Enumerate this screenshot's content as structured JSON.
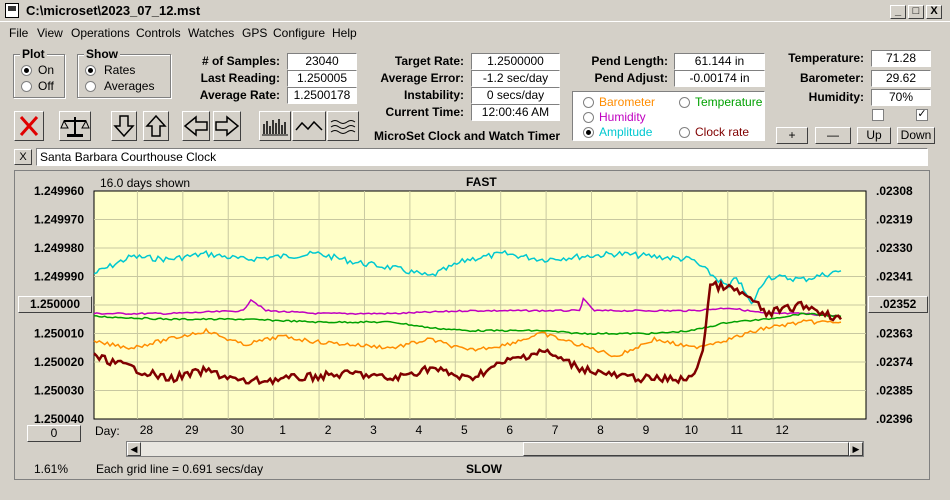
{
  "window": {
    "title": "C:\\microset\\2023_07_12.mst"
  },
  "menu": [
    "File",
    "View",
    "Operations",
    "Controls",
    "Watches",
    "GPS",
    "Configure",
    "Help"
  ],
  "window_buttons": {
    "minimize": "_",
    "maximize": "□",
    "close": "X"
  },
  "plot_group": {
    "caption": "Plot",
    "on": "On",
    "off": "Off",
    "selected": "On"
  },
  "show_group": {
    "caption": "Show",
    "rates": "Rates",
    "averages": "Averages",
    "selected": "Rates"
  },
  "stats": {
    "samples_label": "# of Samples:",
    "samples": "23040",
    "last_reading_label": "Last Reading:",
    "last_reading": "1.250005",
    "avg_rate_label": "Average Rate:",
    "avg_rate": "1.2500178",
    "target_rate_label": "Target Rate:",
    "target_rate": "1.2500000",
    "avg_error_label": "Average Error:",
    "avg_error": "-1.2 sec/day",
    "instability_label": "Instability:",
    "instability": "0 secs/day",
    "current_time_label": "Current Time:",
    "current_time": "12:00:46 AM",
    "pend_length_label": "Pend Length:",
    "pend_length": "61.144 in",
    "pend_adjust_label": "Pend Adjust:",
    "pend_adjust": "-0.00174 in",
    "temperature_label": "Temperature:",
    "temperature": "71.28",
    "barometer_label": "Barometer:",
    "barometer": "29.62",
    "humidity_label": "Humidity:",
    "humidity": "70%"
  },
  "app_caption": "MicroSet Clock and Watch Timer",
  "series_select": {
    "barometer": "Barometer",
    "temperature": "Temperature",
    "humidity": "Humidity",
    "amplitude": "Amplitude",
    "clock_rate": "Clock rate",
    "selected": "Amplitude"
  },
  "colors": {
    "barometer": "#ff8c00",
    "temperature": "#00a000",
    "humidity": "#c000c0",
    "amplitude": "#00c8d0",
    "clock_rate": "#800000",
    "chart_bg": "#ffffc8"
  },
  "small_buttons": {
    "plus": "+",
    "minus": "—",
    "up": "Up",
    "down": "Down"
  },
  "checkboxes": [
    false,
    true
  ],
  "toolbar_icons": [
    "stop-icon",
    "scale-icon",
    "arrow-down-icon",
    "arrow-up-icon",
    "arrow-left-icon",
    "arrow-right-icon",
    "bars-icon",
    "wave-icon",
    "multiwave-icon"
  ],
  "watch_name": {
    "close": "X",
    "value": "Santa Barbara Courthouse Clock"
  },
  "chart_header": {
    "days_shown": "16.0 days shown",
    "fast": "FAST",
    "slow": "SLOW",
    "grid_note": "Each grid line = 0.691 secs/day",
    "percent": "1.61%",
    "day_label": "Day:",
    "center_button": "1.250000",
    "zero_button": "0",
    "right_button": ".02352"
  },
  "chart_data": {
    "type": "line",
    "title": "",
    "left_ticks": [
      "1.249960",
      "1.249970",
      "1.249980",
      "1.249990",
      "1.250000",
      "1.250010",
      "1.250020",
      "1.250030",
      "1.250040"
    ],
    "right_ticks": [
      ".02308",
      ".02319",
      ".02330",
      ".02341",
      ".02352",
      ".02363",
      ".02374",
      ".02385",
      ".02396"
    ],
    "x_ticks": [
      "28",
      "29",
      "30",
      "1",
      "2",
      "3",
      "4",
      "5",
      "6",
      "7",
      "8",
      "9",
      "10",
      "11",
      "12"
    ],
    "ylim": [
      1.24996,
      1.25004
    ],
    "series": [
      {
        "name": "Amplitude",
        "color": "#00c8d0",
        "x": [
          0,
          1,
          2,
          3,
          4,
          5,
          6,
          7,
          8,
          9,
          10,
          11,
          12,
          13,
          14,
          15,
          16,
          17,
          17.2,
          17.6,
          18,
          19,
          20
        ],
        "y": [
          1.249989,
          1.249983,
          1.249984,
          1.249982,
          1.249984,
          1.249983,
          1.249982,
          1.249985,
          1.249987,
          1.24999,
          1.249984,
          1.249982,
          1.249984,
          1.249983,
          1.249982,
          1.249983,
          1.249984,
          1.249994,
          1.24999,
          1.25,
          1.24999,
          1.249991,
          1.249988
        ]
      },
      {
        "name": "Humidity",
        "color": "#c000c0",
        "x": [
          0,
          2,
          4,
          4.2,
          4.6,
          6,
          8,
          10,
          12,
          13,
          13.1,
          13.4,
          15,
          16,
          17,
          18,
          19,
          20
        ],
        "y": [
          1.250003,
          1.250003,
          1.250002,
          1.249998,
          1.250002,
          1.250003,
          1.250003,
          1.250002,
          1.250002,
          1.250002,
          1.249998,
          1.250002,
          1.250002,
          1.250002,
          1.250001,
          1.250003,
          1.250003,
          1.250004
        ]
      },
      {
        "name": "Temperature",
        "color": "#00a000",
        "x": [
          0,
          2,
          4,
          6,
          8,
          9,
          10,
          11,
          12,
          13,
          14,
          15,
          16,
          17,
          18,
          19,
          20
        ],
        "y": [
          1.250004,
          1.250005,
          1.250005,
          1.250006,
          1.250006,
          1.250008,
          1.250009,
          1.250009,
          1.250009,
          1.25001,
          1.25001,
          1.25001,
          1.250009,
          1.250006,
          1.250005,
          1.250003,
          1.250004
        ]
      },
      {
        "name": "Barometer",
        "color": "#ff8c00",
        "x": [
          0,
          1,
          2,
          3,
          4,
          5,
          6,
          7,
          8,
          9,
          10,
          11,
          12,
          13,
          14,
          15,
          16,
          17,
          18,
          19,
          20
        ],
        "y": [
          1.250013,
          1.250015,
          1.250012,
          1.250009,
          1.250014,
          1.250011,
          1.250013,
          1.250014,
          1.250015,
          1.250012,
          1.250016,
          1.250014,
          1.25001,
          1.250014,
          1.250018,
          1.250012,
          1.250015,
          1.250012,
          1.250008,
          1.250006,
          1.250006
        ]
      },
      {
        "name": "Clock rate",
        "color": "#800000",
        "x": [
          0,
          1,
          2,
          3,
          4,
          5,
          6,
          7,
          8,
          9,
          10,
          11,
          12,
          13,
          14,
          15,
          16,
          16.3,
          16.5,
          17,
          17.5,
          18,
          19,
          20
        ],
        "y": [
          1.250018,
          1.250022,
          1.250026,
          1.250023,
          1.250027,
          1.250026,
          1.250025,
          1.250024,
          1.250026,
          1.250022,
          1.250026,
          1.25002,
          1.250016,
          1.250022,
          1.250025,
          1.250026,
          1.250026,
          1.250016,
          1.249993,
          1.249994,
          1.249997,
          1.250003,
          1.25,
          1.250005
        ]
      }
    ]
  }
}
